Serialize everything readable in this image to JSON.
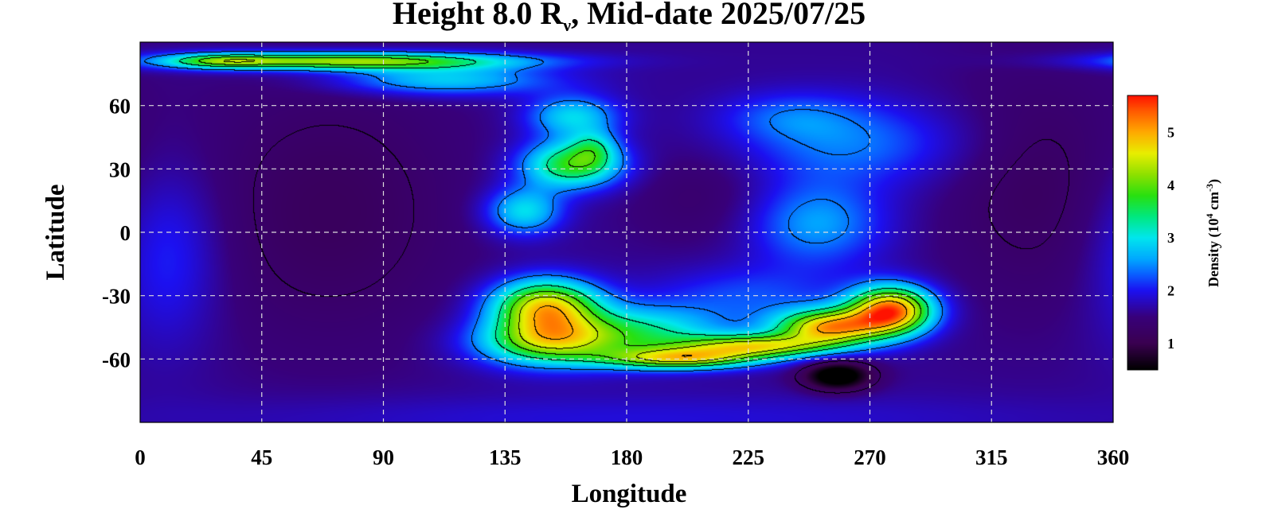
{
  "chart_data": {
    "type": "heatmap",
    "title_prefix": "Height 8.0 R",
    "title_sub": "ν",
    "title_suffix": ", Mid-date 2025/07/25",
    "xlabel": "Longitude",
    "ylabel": "Latitude",
    "xlim": [
      0,
      360
    ],
    "ylim": [
      -90,
      90
    ],
    "xticks": [
      0,
      45,
      90,
      135,
      180,
      225,
      270,
      315,
      360
    ],
    "yticks": [
      60,
      30,
      0,
      -30,
      -60
    ],
    "ytick_labels": [
      "60",
      "30",
      "0",
      "-30",
      "-60"
    ],
    "grid": true,
    "colorbar": {
      "label_prefix": "Density (10",
      "label_exp": "4",
      "label_unit": " cm",
      "label_unit_exp": "-3",
      "label_suffix": ")",
      "range": [
        0.5,
        5.7
      ],
      "ticks": [
        1,
        2,
        3,
        4,
        5
      ],
      "stops": [
        {
          "v": 0.5,
          "color": "#000000"
        },
        {
          "v": 1.0,
          "color": "#3a0050"
        },
        {
          "v": 1.5,
          "color": "#38007a"
        },
        {
          "v": 2.0,
          "color": "#1c10f0"
        },
        {
          "v": 2.3,
          "color": "#0a5cff"
        },
        {
          "v": 2.6,
          "color": "#00a8ff"
        },
        {
          "v": 3.0,
          "color": "#00e6ee"
        },
        {
          "v": 3.4,
          "color": "#00e880"
        },
        {
          "v": 3.8,
          "color": "#28e010"
        },
        {
          "v": 4.2,
          "color": "#8ee000"
        },
        {
          "v": 4.6,
          "color": "#e8ee00"
        },
        {
          "v": 5.0,
          "color": "#ffaa00"
        },
        {
          "v": 5.4,
          "color": "#ff5a00"
        },
        {
          "v": 5.7,
          "color": "#ff1200"
        }
      ]
    },
    "background_value": 1.6,
    "features": [
      {
        "lon": 10,
        "lat": -10,
        "sig_lon": 14,
        "sig_lat": 30,
        "amp": 0.6
      },
      {
        "lon": 75,
        "lat": 81,
        "sig_lon": 45,
        "sig_lat": 3,
        "amp": 2.7
      },
      {
        "lon": 30,
        "lat": 81,
        "sig_lon": 14,
        "sig_lat": 2.5,
        "amp": 1.2
      },
      {
        "lon": 112,
        "lat": 72,
        "sig_lon": 28,
        "sig_lat": 5,
        "amp": 1.3
      },
      {
        "lon": 160,
        "lat": 55,
        "sig_lon": 12,
        "sig_lat": 7,
        "amp": 1.3
      },
      {
        "lon": 160,
        "lat": 32,
        "sig_lon": 13,
        "sig_lat": 8,
        "amp": 2.2
      },
      {
        "lon": 168,
        "lat": 40,
        "sig_lon": 6,
        "sig_lat": 6,
        "amp": 0.9
      },
      {
        "lon": 142,
        "lat": 10,
        "sig_lon": 10,
        "sig_lat": 8,
        "amp": 1.4
      },
      {
        "lon": 150,
        "lat": -35,
        "sig_lon": 14,
        "sig_lat": 9,
        "amp": 3.0
      },
      {
        "lon": 150,
        "lat": -52,
        "sig_lon": 18,
        "sig_lat": 8,
        "amp": 2.3
      },
      {
        "lon": 185,
        "lat": -48,
        "sig_lon": 22,
        "sig_lat": 9,
        "amp": 1.6
      },
      {
        "lon": 200,
        "lat": -60,
        "sig_lon": 20,
        "sig_lat": 3.5,
        "amp": 2.4
      },
      {
        "lon": 228,
        "lat": -54,
        "sig_lon": 20,
        "sig_lat": 4,
        "amp": 2.6
      },
      {
        "lon": 255,
        "lat": -45,
        "sig_lon": 14,
        "sig_lat": 6,
        "amp": 3.2
      },
      {
        "lon": 278,
        "lat": -37,
        "sig_lon": 11,
        "sig_lat": 8,
        "amp": 3.7
      },
      {
        "lon": 225,
        "lat": -30,
        "sig_lon": 25,
        "sig_lat": 10,
        "amp": 0.6
      },
      {
        "lon": 250,
        "lat": 4,
        "sig_lon": 18,
        "sig_lat": 14,
        "amp": 1.0
      },
      {
        "lon": 262,
        "lat": 42,
        "sig_lon": 30,
        "sig_lat": 14,
        "amp": 0.8
      },
      {
        "lon": 240,
        "lat": 55,
        "sig_lon": 18,
        "sig_lat": 8,
        "amp": 0.5
      },
      {
        "lon": 330,
        "lat": 22,
        "sig_lon": 25,
        "sig_lat": 40,
        "amp": -0.4
      },
      {
        "lon": 258,
        "lat": -68,
        "sig_lon": 9,
        "sig_lat": 5,
        "amp": -1.5
      },
      {
        "lon": 70,
        "lat": 10,
        "sig_lon": 35,
        "sig_lat": 45,
        "amp": -0.45
      },
      {
        "lon": 210,
        "lat": 18,
        "sig_lon": 20,
        "sig_lat": 18,
        "amp": -0.3
      },
      {
        "lon": 180,
        "lat": -88,
        "sig_lon": 120,
        "sig_lat": 8,
        "amp": 0.3
      }
    ],
    "contour_levels": [
      1.3,
      2.4,
      3.3,
      3.9,
      4.4,
      5.0
    ]
  }
}
